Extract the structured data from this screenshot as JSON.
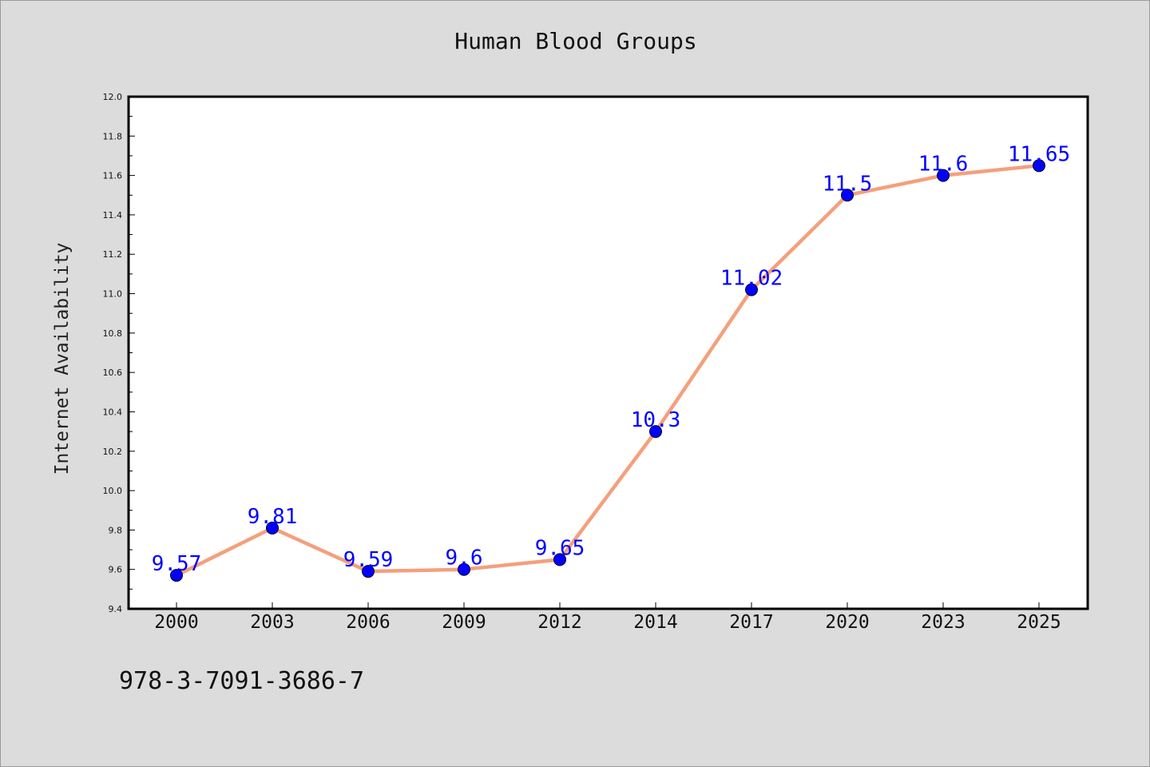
{
  "chart_data": {
    "type": "line",
    "title": "Human Blood Groups",
    "xlabel": "",
    "ylabel": "Internet Availability",
    "categories": [
      "2000",
      "2003",
      "2006",
      "2009",
      "2012",
      "2014",
      "2017",
      "2020",
      "2023",
      "2025"
    ],
    "series": [
      {
        "values": [
          9.57,
          9.81,
          9.59,
          9.6,
          9.65,
          10.3,
          11.02,
          11.5,
          11.6,
          11.65
        ],
        "labels": [
          "9.57",
          "9.81",
          "9.59",
          "9.6",
          "9.65",
          "10.3",
          "11.02",
          "11.5",
          "11.6",
          "11.65"
        ]
      }
    ],
    "ylim": [
      9.4,
      12.0
    ],
    "yticks": [
      "9.4",
      "9.6",
      "9.8",
      "10.0",
      "10.2",
      "10.4",
      "10.6",
      "10.8",
      "11.0",
      "11.2",
      "11.4",
      "11.6",
      "11.8",
      "12.0"
    ],
    "grid": false,
    "legend": "none",
    "data_labels": true
  },
  "footer": {
    "text": "978-3-7091-3686-7"
  },
  "colors": {
    "background": "#dcdcdc",
    "plot_area": "#ffffff",
    "line": "#f4a07c",
    "marker": "#0000ff",
    "data_label": "#0000ff"
  }
}
